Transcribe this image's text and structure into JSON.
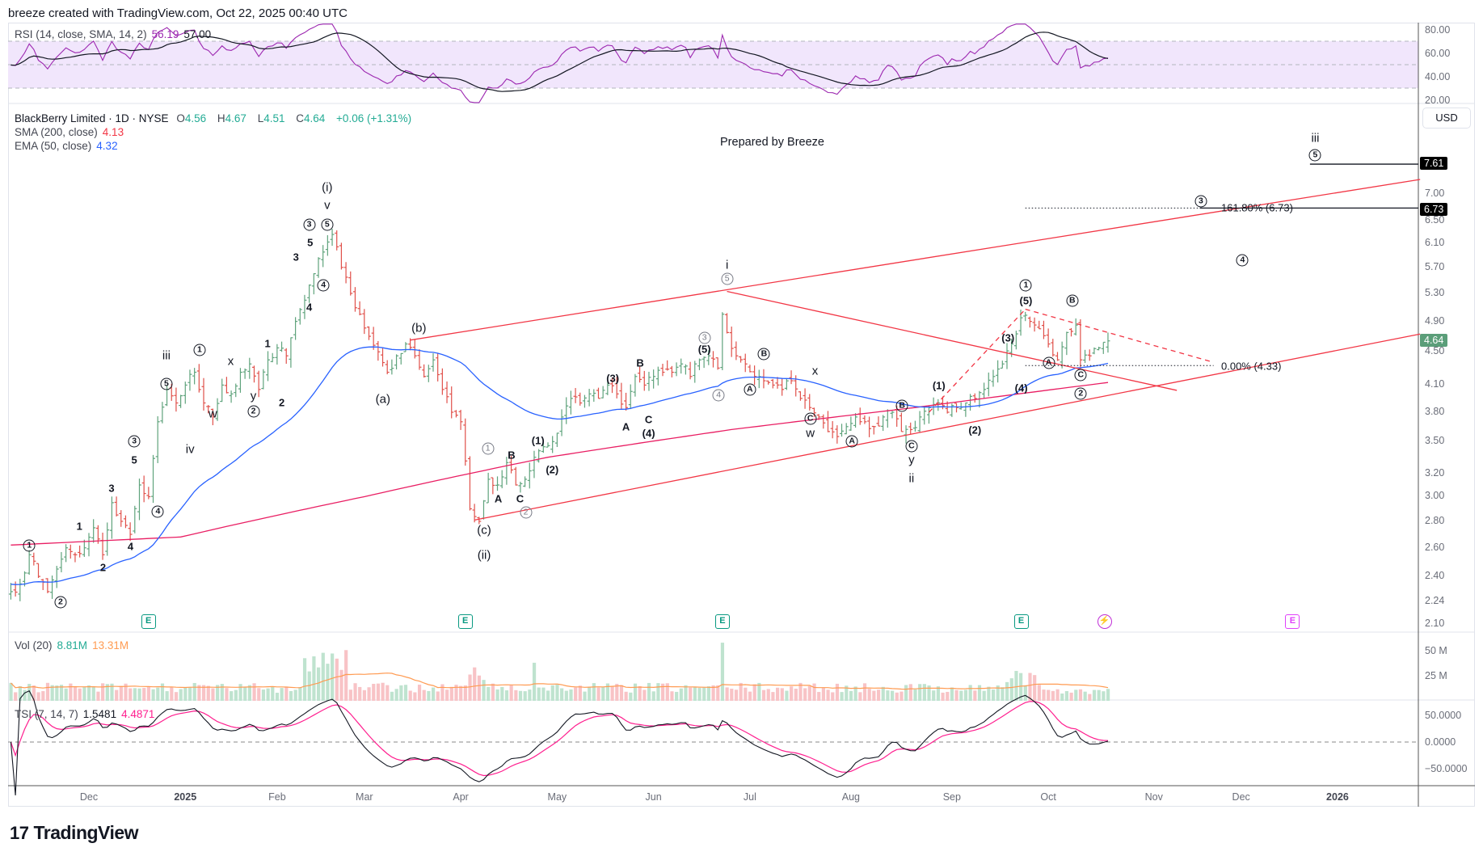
{
  "header": "breeze created with TradingView.com, Oct 22, 2025 00:40 UTC",
  "prepared_by": "Prepared by Breeze",
  "currency": "USD",
  "logo": "TradingView",
  "colors": {
    "up": "#5fa37c",
    "down": "#e0504a",
    "ema": "#2962ff",
    "sma": "#e91e63",
    "rsi": "#9c27b0",
    "channel": "#f23645",
    "vol_ma": "#ff9b52",
    "tsi_signal": "#ff1f8f"
  },
  "legend": {
    "symbol": "BlackBerry Limited · 1D · NYSE",
    "o_label": "O",
    "o": "4.56",
    "h_label": "H",
    "h": "4.67",
    "l_label": "L",
    "l": "4.51",
    "c_label": "C",
    "c": "4.64",
    "change": "+0.06 (+1.31%)",
    "sma_label": "SMA (200, close)",
    "sma": "4.13",
    "ema_label": "EMA (50, close)",
    "ema": "4.32"
  },
  "rsi": {
    "label": "RSI (14, close, SMA, 14, 2)",
    "value": "56.19",
    "sma_value": "57.00",
    "axis": [
      "80.00",
      "60.00",
      "40.00",
      "20.00"
    ]
  },
  "volume": {
    "label": "Vol (20)",
    "value": "8.81M",
    "ma_value": "13.31M",
    "axis": [
      "50 M",
      "25 M"
    ]
  },
  "tsi": {
    "label": "TSI (7, 14, 7)",
    "value": "1.5481",
    "signal": "4.4871",
    "axis": [
      "50.0000",
      "0.0000",
      "−50.0000"
    ]
  },
  "price_badges": {
    "last": "4.64",
    "target_high": "7.61",
    "fib_161": "6.73"
  },
  "fib_labels": {
    "f161": "161.80% (6.73)",
    "f0": "0.00% (4.33)"
  },
  "events": [
    "E",
    "E",
    "E",
    "E",
    "⚡",
    "E"
  ],
  "chart_data": {
    "type": "ohlc",
    "title": "BlackBerry Limited · 1D · NYSE",
    "x_unit": "trading days since 2024-12-02",
    "y_scale": "log",
    "price_axis": [
      7.0,
      6.5,
      6.1,
      5.7,
      5.3,
      4.9,
      4.5,
      4.1,
      3.8,
      3.5,
      3.2,
      3.0,
      2.8,
      2.6,
      2.4,
      2.24,
      2.1
    ],
    "time_axis": [
      {
        "t": "Dec",
        "x": 0
      },
      {
        "t": "2025",
        "x": 21
      },
      {
        "t": "Feb",
        "x": 41
      },
      {
        "t": "Mar",
        "x": 60
      },
      {
        "t": "Apr",
        "x": 81
      },
      {
        "t": "May",
        "x": 102
      },
      {
        "t": "Jun",
        "x": 123
      },
      {
        "t": "Jul",
        "x": 144
      },
      {
        "t": "Aug",
        "x": 166
      },
      {
        "t": "Sep",
        "x": 188
      },
      {
        "t": "Oct",
        "x": 209
      },
      {
        "t": "Nov",
        "x": 232
      },
      {
        "t": "Dec",
        "x": 251
      },
      {
        "t": "2026",
        "x": 272
      }
    ],
    "close_path": [
      [
        -17,
        2.3
      ],
      [
        -15,
        2.35
      ],
      [
        -13,
        2.55
      ],
      [
        -11,
        2.4
      ],
      [
        -9,
        2.3
      ],
      [
        -7,
        2.45
      ],
      [
        -5,
        2.6
      ],
      [
        -3,
        2.55
      ],
      [
        -1,
        2.6
      ],
      [
        1,
        2.75
      ],
      [
        3,
        2.55
      ],
      [
        5,
        2.95
      ],
      [
        7,
        2.8
      ],
      [
        9,
        2.7
      ],
      [
        11,
        3.1
      ],
      [
        13,
        3.0
      ],
      [
        15,
        3.7
      ],
      [
        17,
        4.05
      ],
      [
        19,
        3.9
      ],
      [
        21,
        4.1
      ],
      [
        23,
        4.25
      ],
      [
        25,
        3.9
      ],
      [
        27,
        3.75
      ],
      [
        29,
        4.1
      ],
      [
        31,
        4.0
      ],
      [
        33,
        4.25
      ],
      [
        35,
        4.35
      ],
      [
        37,
        4.05
      ],
      [
        39,
        4.4
      ],
      [
        41,
        4.55
      ],
      [
        43,
        4.45
      ],
      [
        45,
        4.9
      ],
      [
        47,
        5.2
      ],
      [
        49,
        5.6
      ],
      [
        51,
        5.95
      ],
      [
        53,
        6.25
      ],
      [
        55,
        5.7
      ],
      [
        57,
        5.3
      ],
      [
        59,
        5.0
      ],
      [
        61,
        4.7
      ],
      [
        63,
        4.5
      ],
      [
        65,
        4.25
      ],
      [
        67,
        4.45
      ],
      [
        69,
        4.6
      ],
      [
        71,
        4.45
      ],
      [
        73,
        4.2
      ],
      [
        75,
        4.4
      ],
      [
        77,
        4.05
      ],
      [
        79,
        3.8
      ],
      [
        81,
        3.7
      ],
      [
        83,
        2.9
      ],
      [
        85,
        2.8
      ],
      [
        87,
        3.15
      ],
      [
        89,
        3.1
      ],
      [
        91,
        3.3
      ],
      [
        93,
        3.1
      ],
      [
        95,
        3.15
      ],
      [
        97,
        3.35
      ],
      [
        99,
        3.45
      ],
      [
        101,
        3.5
      ],
      [
        103,
        3.75
      ],
      [
        105,
        3.95
      ],
      [
        107,
        3.9
      ],
      [
        109,
        4.0
      ],
      [
        111,
        3.95
      ],
      [
        113,
        4.1
      ],
      [
        115,
        4.0
      ],
      [
        117,
        3.85
      ],
      [
        119,
        4.2
      ],
      [
        121,
        4.1
      ],
      [
        123,
        4.2
      ],
      [
        125,
        4.25
      ],
      [
        127,
        4.25
      ],
      [
        129,
        4.35
      ],
      [
        131,
        4.2
      ],
      [
        133,
        4.4
      ],
      [
        135,
        4.45
      ],
      [
        137,
        4.3
      ],
      [
        138,
        5.0
      ],
      [
        139,
        4.75
      ],
      [
        141,
        4.45
      ],
      [
        143,
        4.35
      ],
      [
        145,
        4.2
      ],
      [
        147,
        4.15
      ],
      [
        149,
        4.1
      ],
      [
        151,
        4.05
      ],
      [
        153,
        4.15
      ],
      [
        155,
        3.95
      ],
      [
        157,
        3.85
      ],
      [
        159,
        3.75
      ],
      [
        161,
        3.6
      ],
      [
        163,
        3.55
      ],
      [
        165,
        3.65
      ],
      [
        167,
        3.75
      ],
      [
        169,
        3.7
      ],
      [
        171,
        3.65
      ],
      [
        173,
        3.75
      ],
      [
        175,
        3.8
      ],
      [
        177,
        3.6
      ],
      [
        179,
        3.62
      ],
      [
        181,
        3.75
      ],
      [
        183,
        3.85
      ],
      [
        185,
        3.9
      ],
      [
        187,
        3.8
      ],
      [
        189,
        3.85
      ],
      [
        191,
        3.9
      ],
      [
        193,
        3.95
      ],
      [
        195,
        4.05
      ],
      [
        197,
        4.2
      ],
      [
        199,
        4.35
      ],
      [
        201,
        4.6
      ],
      [
        203,
        4.95
      ],
      [
        205,
        4.9
      ],
      [
        207,
        4.8
      ],
      [
        209,
        4.6
      ],
      [
        211,
        4.4
      ],
      [
        213,
        4.75
      ],
      [
        215,
        4.85
      ],
      [
        216,
        4.4
      ],
      [
        218,
        4.45
      ],
      [
        220,
        4.55
      ],
      [
        222,
        4.64
      ]
    ],
    "sma200_path": [
      [
        -17,
        2.62
      ],
      [
        20,
        2.68
      ],
      [
        60,
        3.0
      ],
      [
        100,
        3.35
      ],
      [
        140,
        3.62
      ],
      [
        180,
        3.85
      ],
      [
        222,
        4.13
      ]
    ],
    "trendlines": [
      {
        "name": "upper-channel",
        "from": [
          70,
          4.65
        ],
        "to": [
          290,
          7.29
        ],
        "style": "solid"
      },
      {
        "name": "lower-channel",
        "from": [
          84,
          2.81
        ],
        "to": [
          290,
          4.73
        ],
        "style": "solid"
      },
      {
        "name": "descending-line",
        "from": [
          139,
          5.33
        ],
        "to": [
          237,
          4.04
        ],
        "style": "solid"
      },
      {
        "name": "wedge-rise",
        "from": [
          183,
          3.8
        ],
        "to": [
          204,
          5.07
        ],
        "style": "dashed"
      },
      {
        "name": "wedge-top",
        "from": [
          204,
          5.07
        ],
        "to": [
          245,
          4.37
        ],
        "style": "dashed"
      }
    ],
    "levels": [
      {
        "name": "fib-161",
        "price": 6.73,
        "from": 204
      },
      {
        "name": "fib-0",
        "price": 4.33,
        "from": 204,
        "to": 245
      },
      {
        "name": "target-iii",
        "price": 7.61,
        "from": 266
      }
    ],
    "wave_labels": [
      "(i)",
      "v",
      "3",
      "5",
      "5",
      "3",
      "4",
      "4",
      "1",
      "2",
      "iii",
      "1",
      "5",
      "x",
      "y",
      "2",
      "w",
      "iv",
      "3",
      "5",
      "3",
      "4",
      "1",
      "4",
      "2",
      "1",
      "2",
      "(b)",
      "(a)",
      "(c)",
      "(ii)",
      "1",
      "B",
      "A",
      "C",
      "2",
      "(1)",
      "(2)",
      "(3)",
      "B",
      "A",
      "C",
      "(4)",
      "(5)",
      "3",
      "4",
      "i",
      "5",
      "B",
      "A",
      "x",
      "C",
      "w",
      "A",
      "B",
      "C",
      "y",
      "ii",
      "(1)",
      "(2)",
      "(3)",
      "(4)",
      "(5)",
      "1",
      "A",
      "B",
      "C",
      "2",
      "3",
      "4",
      "iii",
      "5"
    ]
  }
}
